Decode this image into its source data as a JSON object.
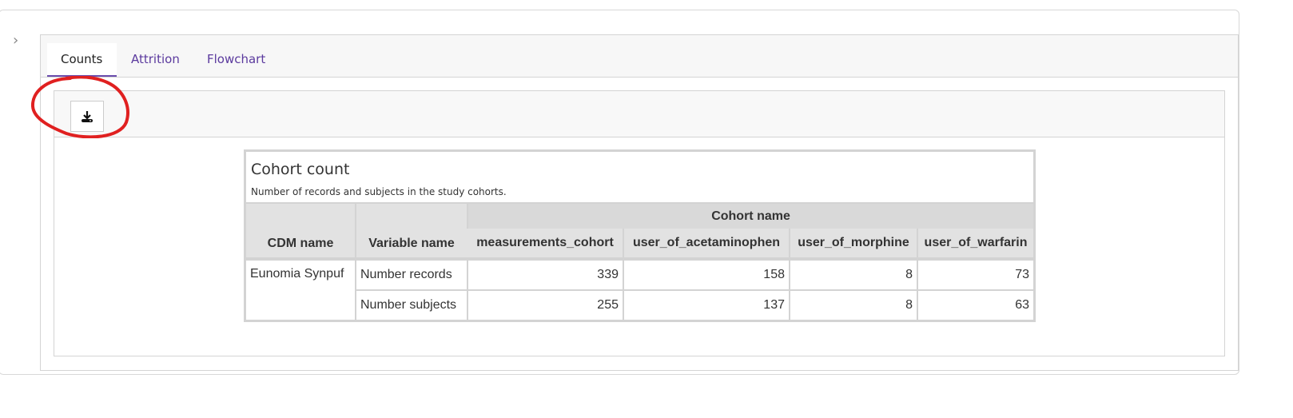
{
  "tabs": [
    {
      "label": "Counts",
      "active": true
    },
    {
      "label": "Attrition",
      "active": false
    },
    {
      "label": "Flowchart",
      "active": false
    }
  ],
  "toolbar": {
    "download_icon": "download-icon"
  },
  "annotation": {
    "color": "#e02020",
    "shape": "hand-drawn circle around download button"
  },
  "colors": {
    "tab_accent": "#5b3a9e"
  },
  "table": {
    "title": "Cohort count",
    "subtitle": "Number of records and subjects in the study cohorts.",
    "spanner": "Cohort name",
    "headers": [
      "CDM name",
      "Variable name",
      "measurements_cohort",
      "user_of_acetaminophen",
      "user_of_morphine",
      "user_of_warfarin"
    ],
    "cdm_name": "Eunomia Synpuf",
    "rows": [
      {
        "variable": "Number records",
        "values": [
          "339",
          "158",
          "8",
          "73"
        ]
      },
      {
        "variable": "Number subjects",
        "values": [
          "255",
          "137",
          "8",
          "63"
        ]
      }
    ]
  }
}
